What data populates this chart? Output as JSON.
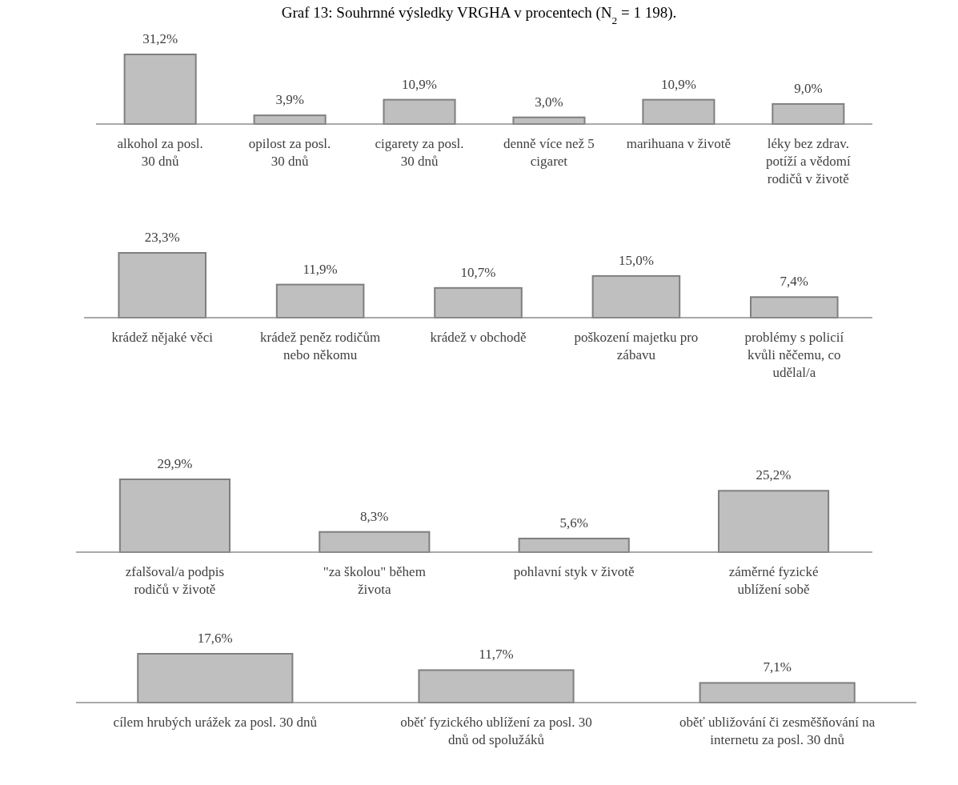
{
  "chart_data": [
    {
      "type": "bar",
      "title": "Graf 13: Souhrnné výsledky VRGHA v procentech (N$_{2}$ = 1 198).",
      "categories": [
        "alkohol  za posl. 30 dnů",
        "opilost za posl. 30 dnů",
        "cigarety za posl. 30 dnů",
        "denně více než 5 cigaret",
        "marihuana v životě",
        "léky bez zdrav. potíží a vědomí rodičů v životě"
      ],
      "values": [
        31.2,
        3.9,
        10.9,
        3.0,
        10.9,
        9.0
      ],
      "value_labels": [
        "31,2%",
        "3,9%",
        "10,9%",
        "3,0%",
        "10,9%",
        "9,0%"
      ],
      "color": "#bfbfbf"
    },
    {
      "type": "bar",
      "categories": [
        "krádež nějaké věci",
        "krádež peněz rodičům nebo někomu",
        "krádež v obchodě",
        "poškození majetku pro zábavu",
        "problémy s policií kvůli něčemu, co udělal/a"
      ],
      "values": [
        23.3,
        11.9,
        10.7,
        15.0,
        7.4
      ],
      "value_labels": [
        "23,3%",
        "11,9%",
        "10,7%",
        "15,0%",
        "7,4%"
      ],
      "color": "#bfbfbf"
    },
    {
      "type": "bar",
      "categories": [
        "zfalšoval/a podpis rodičů v životě",
        "\"za školou\" během života",
        "pohlavní styk v životě",
        "záměrné fyzické ublížení sobě"
      ],
      "values": [
        29.9,
        8.3,
        5.6,
        25.2
      ],
      "value_labels": [
        "29,9%",
        "8,3%",
        "5,6%",
        "25,2%"
      ],
      "color": "#bfbfbf"
    },
    {
      "type": "bar",
      "categories": [
        "cílem hrubých urážek za posl. 30 dnů",
        "oběť fyzického ublížení za posl. 30 dnů od spolužáků",
        "oběť ubližování či zesměšňování na internetu za posl. 30 dnů"
      ],
      "values": [
        17.6,
        11.7,
        7.1
      ],
      "value_labels": [
        "17,6%",
        "11,7%",
        "7,1%"
      ],
      "color": "#bfbfbf"
    }
  ]
}
